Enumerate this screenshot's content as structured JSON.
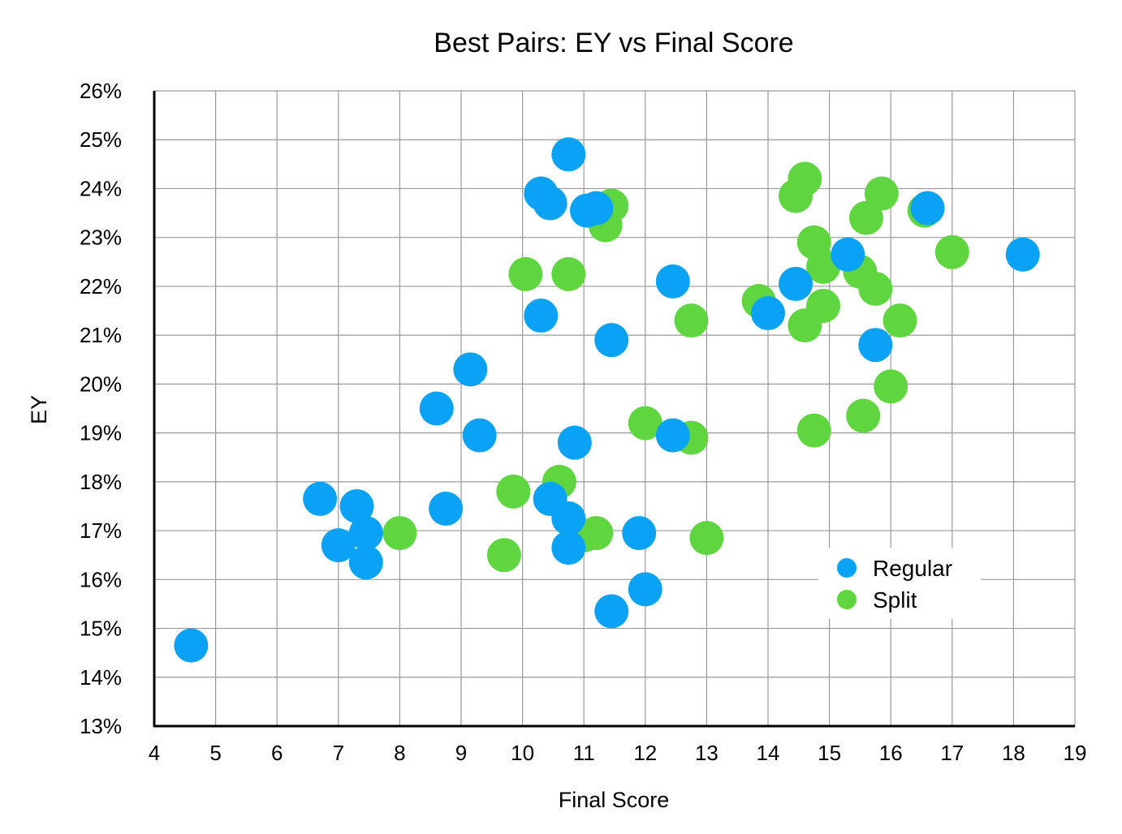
{
  "chart_data": {
    "type": "scatter",
    "title": "Best Pairs: EY vs Final Score",
    "xlabel": "Final Score",
    "ylabel": "EY",
    "xlim": [
      4,
      19
    ],
    "ylim": [
      13,
      26
    ],
    "x_ticks": [
      "4",
      "5",
      "6",
      "7",
      "8",
      "9",
      "10",
      "11",
      "12",
      "13",
      "14",
      "15",
      "16",
      "17",
      "18",
      "19"
    ],
    "y_ticks": [
      "13%",
      "14%",
      "15%",
      "16%",
      "17%",
      "18%",
      "19%",
      "20%",
      "21%",
      "22%",
      "23%",
      "24%",
      "25%",
      "26%"
    ],
    "grid": true,
    "legend_position": "bottom-right",
    "series": [
      {
        "name": "Split",
        "color": "#5fd63f",
        "points": [
          {
            "x": 11.3,
            "y": 23.5
          },
          {
            "x": 11.45,
            "y": 23.65
          },
          {
            "x": 11.35,
            "y": 23.25
          },
          {
            "x": 10.05,
            "y": 22.25
          },
          {
            "x": 10.75,
            "y": 22.25
          },
          {
            "x": 12.75,
            "y": 21.3
          },
          {
            "x": 12.0,
            "y": 19.2
          },
          {
            "x": 12.75,
            "y": 18.9
          },
          {
            "x": 10.6,
            "y": 18.0
          },
          {
            "x": 9.85,
            "y": 17.8
          },
          {
            "x": 8.0,
            "y": 16.95
          },
          {
            "x": 9.7,
            "y": 16.5
          },
          {
            "x": 11.0,
            "y": 16.9
          },
          {
            "x": 11.2,
            "y": 16.95
          },
          {
            "x": 13.0,
            "y": 16.85
          },
          {
            "x": 14.6,
            "y": 24.2
          },
          {
            "x": 14.45,
            "y": 23.85
          },
          {
            "x": 15.85,
            "y": 23.9
          },
          {
            "x": 15.6,
            "y": 23.4
          },
          {
            "x": 16.55,
            "y": 23.55
          },
          {
            "x": 14.75,
            "y": 22.9
          },
          {
            "x": 14.9,
            "y": 22.4
          },
          {
            "x": 15.5,
            "y": 22.3
          },
          {
            "x": 15.75,
            "y": 21.95
          },
          {
            "x": 17.0,
            "y": 22.7
          },
          {
            "x": 13.85,
            "y": 21.7
          },
          {
            "x": 14.9,
            "y": 21.6
          },
          {
            "x": 14.6,
            "y": 21.2
          },
          {
            "x": 16.15,
            "y": 21.3
          },
          {
            "x": 16.0,
            "y": 19.95
          },
          {
            "x": 15.55,
            "y": 19.35
          },
          {
            "x": 14.75,
            "y": 19.05
          }
        ]
      },
      {
        "name": "Regular",
        "color": "#0aa2f5",
        "points": [
          {
            "x": 4.6,
            "y": 14.65
          },
          {
            "x": 6.7,
            "y": 17.65
          },
          {
            "x": 7.0,
            "y": 16.7
          },
          {
            "x": 7.3,
            "y": 17.5
          },
          {
            "x": 7.45,
            "y": 16.95
          },
          {
            "x": 7.45,
            "y": 16.35
          },
          {
            "x": 8.6,
            "y": 19.5
          },
          {
            "x": 8.75,
            "y": 17.45
          },
          {
            "x": 9.15,
            "y": 20.3
          },
          {
            "x": 9.3,
            "y": 18.95
          },
          {
            "x": 10.3,
            "y": 23.9
          },
          {
            "x": 10.45,
            "y": 23.7
          },
          {
            "x": 10.75,
            "y": 24.7
          },
          {
            "x": 11.05,
            "y": 23.55
          },
          {
            "x": 11.2,
            "y": 23.6
          },
          {
            "x": 10.3,
            "y": 21.4
          },
          {
            "x": 11.45,
            "y": 20.9
          },
          {
            "x": 10.85,
            "y": 18.8
          },
          {
            "x": 10.45,
            "y": 17.65
          },
          {
            "x": 10.75,
            "y": 17.25
          },
          {
            "x": 10.75,
            "y": 16.65
          },
          {
            "x": 11.9,
            "y": 16.95
          },
          {
            "x": 12.0,
            "y": 15.8
          },
          {
            "x": 11.45,
            "y": 15.35
          },
          {
            "x": 12.45,
            "y": 22.1
          },
          {
            "x": 12.45,
            "y": 18.95
          },
          {
            "x": 14.0,
            "y": 21.45
          },
          {
            "x": 14.45,
            "y": 22.05
          },
          {
            "x": 15.3,
            "y": 22.65
          },
          {
            "x": 15.75,
            "y": 20.8
          },
          {
            "x": 16.6,
            "y": 23.6
          },
          {
            "x": 18.15,
            "y": 22.65
          }
        ]
      }
    ],
    "legend": [
      {
        "name": "Regular",
        "color": "#0aa2f5"
      },
      {
        "name": "Split",
        "color": "#5fd63f"
      }
    ]
  }
}
